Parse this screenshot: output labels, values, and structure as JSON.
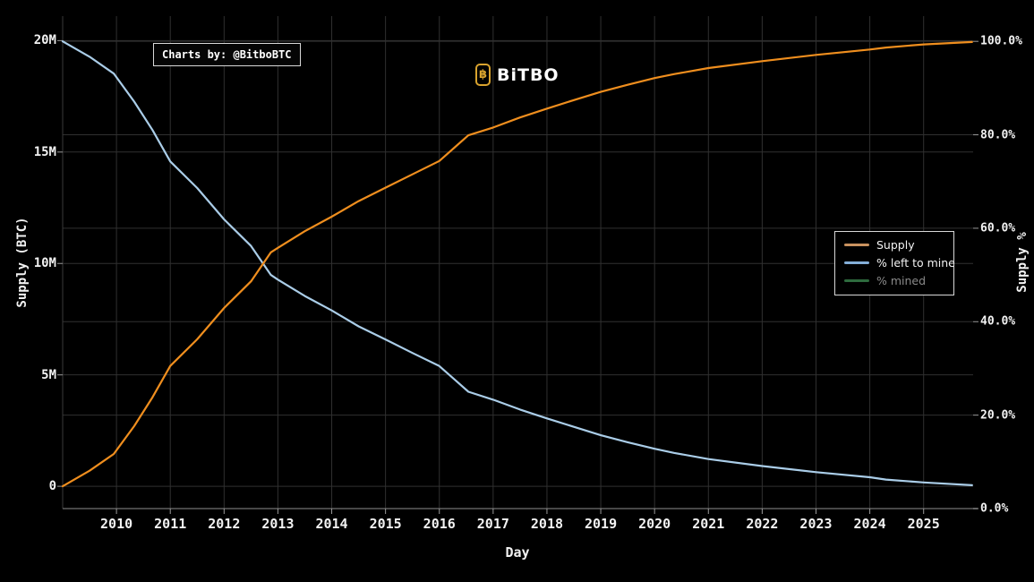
{
  "watermark": {
    "text": "Charts by: @BitboBTC"
  },
  "logo": {
    "icon_glyph": "฿",
    "text": "BiTBO",
    "icon_color": "#d9a32e"
  },
  "legend": {
    "entries": [
      {
        "label": "Supply",
        "swatch_color": "#c9925f",
        "muted": false
      },
      {
        "label": "% left to mine",
        "swatch_color": "#84aed8",
        "muted": false
      },
      {
        "label": "% mined",
        "swatch_color": "#2e6b3e",
        "muted": true
      }
    ]
  },
  "chart_data": {
    "type": "line",
    "title": "",
    "xlabel": "Day",
    "x_range": [
      2009.0,
      2025.92
    ],
    "x_tick_values": [
      2010,
      2011,
      2012,
      2013,
      2014,
      2015,
      2016,
      2017,
      2018,
      2019,
      2020,
      2021,
      2022,
      2023,
      2024,
      2025
    ],
    "x_tick_labels": [
      "2010",
      "2011",
      "2012",
      "2013",
      "2014",
      "2015",
      "2016",
      "2017",
      "2018",
      "2019",
      "2020",
      "2021",
      "2022",
      "2023",
      "2024",
      "2025"
    ],
    "y_left": {
      "label": "Supply (BTC)",
      "range": [
        -1.0,
        21.1
      ],
      "tick_values": [
        0,
        5,
        10,
        15,
        20
      ],
      "tick_labels": [
        "0",
        "5M",
        "10M",
        "15M",
        "20M"
      ],
      "units": "millions of BTC"
    },
    "y_right": {
      "label": "Supply %",
      "range": [
        0,
        105.4
      ],
      "tick_values": [
        0,
        20,
        40,
        60,
        80,
        100
      ],
      "tick_labels": [
        "0.0%",
        "20.0%",
        "40.0%",
        "60.0%",
        "80.0%",
        "100.0%"
      ]
    },
    "grid": true,
    "legend_position": "right-middle",
    "colors": {
      "background": "#000000",
      "gridline": "#303030",
      "axis_line": "#5f5f5f",
      "tick_mark": "#9a9a9a",
      "supply_line": "#ef8e1e",
      "pct_left_line": "#aacde8",
      "pct_mined_line": "#2e6b3e"
    },
    "series": [
      {
        "name": "Supply",
        "axis": "left",
        "color": "#ef8e1e",
        "hidden": false,
        "x": [
          2009.0,
          2009.5,
          2009.95,
          2010.33,
          2010.67,
          2011.0,
          2011.5,
          2012.0,
          2012.5,
          2012.87,
          2013.0,
          2013.5,
          2014.0,
          2014.5,
          2015.0,
          2015.5,
          2016.0,
          2016.54,
          2017.0,
          2017.5,
          2018.0,
          2018.5,
          2019.0,
          2019.5,
          2020.0,
          2020.37,
          2021.0,
          2022.0,
          2023.0,
          2024.0,
          2024.3,
          2025.0,
          2025.9
        ],
        "values": [
          0.0,
          0.7,
          1.45,
          2.7,
          4.0,
          5.4,
          6.6,
          8.0,
          9.2,
          10.5,
          10.7,
          11.45,
          12.1,
          12.8,
          13.4,
          14.0,
          14.6,
          15.75,
          16.1,
          16.55,
          16.95,
          17.33,
          17.7,
          18.02,
          18.32,
          18.5,
          18.77,
          19.08,
          19.36,
          19.6,
          19.69,
          19.83,
          19.94
        ]
      },
      {
        "name": "% left to mine",
        "axis": "right",
        "color": "#aacde8",
        "hidden": false,
        "x": [
          2009.0,
          2009.5,
          2009.95,
          2010.33,
          2010.67,
          2011.0,
          2011.5,
          2012.0,
          2012.5,
          2012.87,
          2013.0,
          2013.5,
          2014.0,
          2014.5,
          2015.0,
          2015.5,
          2016.0,
          2016.54,
          2017.0,
          2017.5,
          2018.0,
          2018.5,
          2019.0,
          2019.5,
          2020.0,
          2020.37,
          2021.0,
          2022.0,
          2023.0,
          2024.0,
          2024.3,
          2025.0,
          2025.9
        ],
        "values": [
          100.0,
          96.7,
          93.1,
          87.1,
          81.0,
          74.3,
          68.6,
          61.9,
          56.2,
          50.0,
          49.0,
          45.5,
          42.4,
          39.0,
          36.2,
          33.3,
          30.5,
          25.0,
          23.3,
          21.2,
          19.3,
          17.5,
          15.7,
          14.2,
          12.8,
          11.9,
          10.6,
          9.1,
          7.8,
          6.7,
          6.2,
          5.6,
          5.0
        ]
      },
      {
        "name": "% mined",
        "axis": "right",
        "color": "#2e6b3e",
        "hidden": true,
        "x": [],
        "values": []
      }
    ]
  }
}
